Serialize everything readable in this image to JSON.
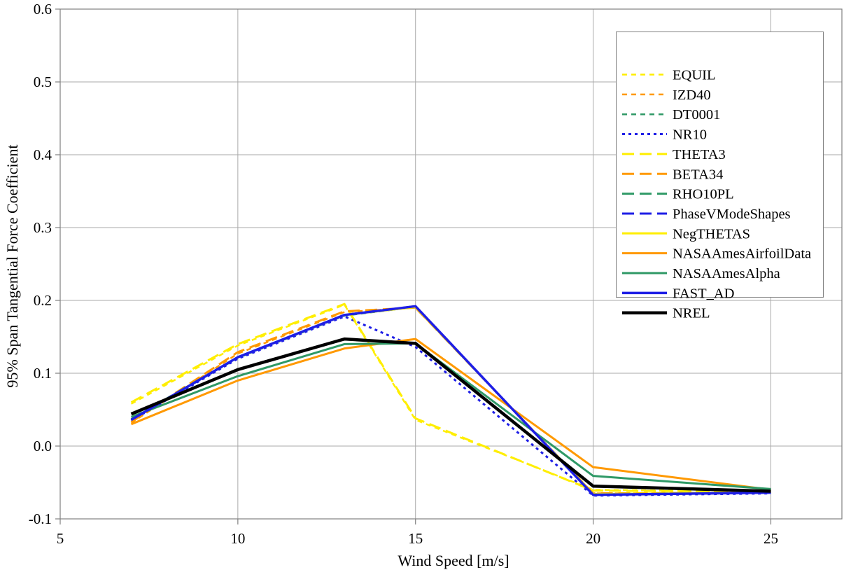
{
  "chart_data": {
    "type": "line",
    "title": "",
    "xlabel": "Wind Speed [m/s]",
    "ylabel": "95% Span Tangential Force Coefficient",
    "xlim": [
      5,
      27
    ],
    "ylim": [
      -0.1,
      0.6
    ],
    "x_ticks": [
      5,
      10,
      15,
      20,
      25
    ],
    "x_tick_labels": [
      "5",
      "10",
      "15",
      "20",
      "25"
    ],
    "y_ticks": [
      -0.1,
      0.0,
      0.1,
      0.2,
      0.3,
      0.4,
      0.5,
      0.6
    ],
    "y_tick_labels": [
      "-0.1",
      "0.0",
      "0.1",
      "0.2",
      "0.3",
      "0.4",
      "0.5",
      "0.6"
    ],
    "grid": true,
    "legend_position": "top-right",
    "x": [
      7,
      10,
      13,
      15,
      20,
      25
    ],
    "series": [
      {
        "name": "EQUIL",
        "color": "#FFEE00",
        "style": "shortdash",
        "width": 2.5,
        "values": [
          0.058,
          0.138,
          0.194,
          0.036,
          -0.06,
          -0.063
        ]
      },
      {
        "name": "IZD40",
        "color": "#FF9900",
        "style": "shortdash",
        "width": 2.5,
        "values": [
          0.032,
          0.127,
          0.184,
          0.19,
          -0.065,
          -0.064
        ]
      },
      {
        "name": "DT0001",
        "color": "#2F9966",
        "style": "shortdash",
        "width": 2.5,
        "values": [
          0.036,
          0.121,
          0.179,
          0.191,
          -0.066,
          -0.064
        ]
      },
      {
        "name": "NR10",
        "color": "#1E1EE6",
        "style": "dotted",
        "width": 3,
        "values": [
          0.035,
          0.12,
          0.178,
          0.136,
          -0.068,
          -0.065
        ]
      },
      {
        "name": "THETA3",
        "color": "#FFEE00",
        "style": "longdash",
        "width": 3,
        "values": [
          0.06,
          0.14,
          0.195,
          0.038,
          -0.061,
          -0.063
        ]
      },
      {
        "name": "BETA34",
        "color": "#FF9900",
        "style": "longdash",
        "width": 3,
        "values": [
          0.033,
          0.129,
          0.185,
          0.19,
          -0.065,
          -0.064
        ]
      },
      {
        "name": "RHO10PL",
        "color": "#2F9966",
        "style": "longdash",
        "width": 3,
        "values": [
          0.037,
          0.122,
          0.18,
          0.191,
          -0.066,
          -0.064
        ]
      },
      {
        "name": "PhaseVModeShapes",
        "color": "#1E1EE6",
        "style": "longdash",
        "width": 3,
        "values": [
          0.036,
          0.122,
          0.18,
          0.192,
          -0.067,
          -0.064
        ]
      },
      {
        "name": "NegTHETAS",
        "color": "#FFEE00",
        "style": "solid",
        "width": 3,
        "values": [
          0.036,
          0.122,
          0.18,
          0.191,
          -0.066,
          -0.064
        ]
      },
      {
        "name": "NASAAmesAirfoilData",
        "color": "#FF9900",
        "style": "solid",
        "width": 3,
        "values": [
          0.03,
          0.09,
          0.134,
          0.147,
          -0.029,
          -0.06
        ]
      },
      {
        "name": "NASAAmesAlpha",
        "color": "#2F9966",
        "style": "solid",
        "width": 3,
        "values": [
          0.04,
          0.096,
          0.14,
          0.141,
          -0.041,
          -0.059
        ]
      },
      {
        "name": "FAST_AD",
        "color": "#1E1EE6",
        "style": "solid",
        "width": 3.5,
        "values": [
          0.036,
          0.122,
          0.18,
          0.192,
          -0.067,
          -0.064
        ]
      },
      {
        "name": "NREL",
        "color": "#000000",
        "style": "solid",
        "width": 4.5,
        "values": [
          0.044,
          0.105,
          0.147,
          0.141,
          -0.055,
          -0.062
        ]
      }
    ]
  },
  "colors": {
    "background": "#FFFFFF",
    "grid": "#A9A9A9",
    "axis_border": "#808080",
    "tick": "#808080",
    "text": "#000000",
    "legend_border": "#808080",
    "legend_fill": "#FFFFFF"
  }
}
